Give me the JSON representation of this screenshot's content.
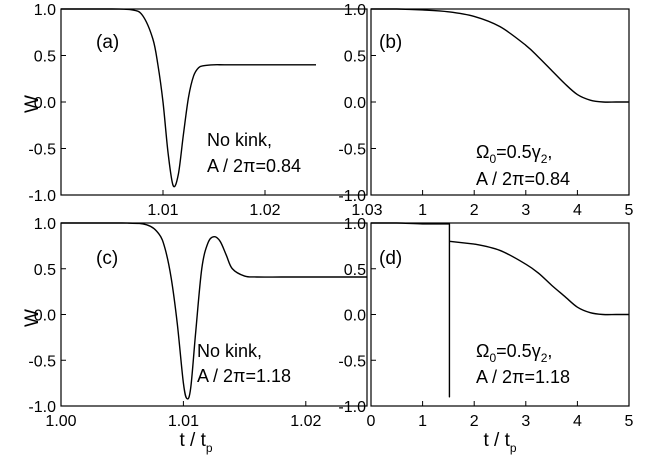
{
  "chart_data": [
    {
      "id": "a",
      "type": "line",
      "panel_label": "(a)",
      "ylabel": "W",
      "xlabel": "",
      "xlim": [
        1.0,
        1.03
      ],
      "ylim": [
        -1.0,
        1.0
      ],
      "xticks": [
        1.01,
        1.02,
        1.03
      ],
      "xtick_labels": [
        "1.01",
        "1.02",
        "1.03"
      ],
      "yticks": [
        1.0,
        0.5,
        0.0,
        -0.5,
        -1.0
      ],
      "ytick_labels": [
        "1.0",
        "0.5",
        "0.0",
        "-0.5",
        "-1.0"
      ],
      "annotation": [
        "No kink,",
        "A / 2π=0.84"
      ],
      "series": [
        {
          "x": [
            1.0,
            1.005,
            1.007,
            1.008,
            1.009,
            1.0095,
            1.01,
            1.0105,
            1.011,
            1.0115,
            1.012,
            1.0125,
            1.013,
            1.0135,
            1.014,
            1.015,
            1.016,
            1.018,
            1.02,
            1.025
          ],
          "y": [
            1.0,
            1.0,
            0.99,
            0.93,
            0.68,
            0.4,
            0.0,
            -0.55,
            -0.9,
            -0.78,
            -0.35,
            0.05,
            0.28,
            0.37,
            0.39,
            0.4,
            0.4,
            0.4,
            0.4,
            0.4
          ]
        }
      ]
    },
    {
      "id": "b",
      "type": "line",
      "panel_label": "(b)",
      "ylabel": "",
      "xlabel": "",
      "xlim": [
        0,
        5
      ],
      "ylim": [
        -1.0,
        1.0
      ],
      "xticks": [
        1,
        2,
        3,
        4,
        5
      ],
      "xtick_labels": [
        "1",
        "2",
        "3",
        "4",
        "5"
      ],
      "yticks": [
        1.0,
        0.5,
        0.0,
        -0.5,
        -1.0
      ],
      "ytick_labels": [
        "1.0",
        "0.5",
        "0.0",
        "-0.5",
        "-1.0"
      ],
      "annotation_omega": "Ω",
      "annotation_omega_sub": "0",
      "annotation_mid": "=0.5γ",
      "annotation_gamma_sub": "2",
      "annotation_end": ",",
      "annotation_line2": "A / 2π=0.84",
      "series": [
        {
          "x": [
            0,
            0.5,
            1.0,
            1.5,
            2.0,
            2.5,
            3.0,
            3.25,
            3.5,
            3.75,
            4.0,
            4.25,
            4.5,
            4.75,
            5.0
          ],
          "y": [
            1.0,
            1.0,
            0.99,
            0.97,
            0.92,
            0.81,
            0.61,
            0.48,
            0.34,
            0.2,
            0.08,
            0.02,
            0.0,
            0.0,
            0.0
          ]
        }
      ]
    },
    {
      "id": "c",
      "type": "line",
      "panel_label": "(c)",
      "ylabel": "W",
      "xlabel": "t / t",
      "xlabel_sub": "p",
      "xlim": [
        1.0,
        1.025
      ],
      "ylim": [
        -1.0,
        1.0
      ],
      "xticks": [
        1.0,
        1.01,
        1.02
      ],
      "xtick_labels": [
        "1.00",
        "1.01",
        "1.02"
      ],
      "yticks": [
        1.0,
        0.5,
        0.0,
        -0.5,
        -1.0
      ],
      "ytick_labels": [
        "1.0",
        "0.5",
        "0.0",
        "-0.5",
        "-1.0"
      ],
      "annotation": [
        "No kink,",
        "A / 2π=1.18"
      ],
      "series": [
        {
          "x": [
            1.0,
            1.005,
            1.007,
            1.008,
            1.0085,
            1.009,
            1.0095,
            1.01,
            1.0103,
            1.0106,
            1.011,
            1.0115,
            1.012,
            1.0125,
            1.013,
            1.0135,
            1.014,
            1.015,
            1.016,
            1.018,
            1.02,
            1.025
          ],
          "y": [
            1.0,
            1.0,
            0.98,
            0.88,
            0.72,
            0.4,
            -0.1,
            -0.75,
            -0.92,
            -0.8,
            -0.2,
            0.5,
            0.78,
            0.85,
            0.8,
            0.65,
            0.5,
            0.42,
            0.41,
            0.41,
            0.41,
            0.41
          ]
        }
      ]
    },
    {
      "id": "d",
      "type": "line",
      "panel_label": "(d)",
      "ylabel": "",
      "xlabel": "t / t",
      "xlabel_sub": "p",
      "xlim": [
        0,
        5
      ],
      "ylim": [
        -1.0,
        1.0
      ],
      "xticks": [
        0,
        1,
        2,
        3,
        4,
        5
      ],
      "xtick_labels": [
        "0",
        "1",
        "2",
        "3",
        "4",
        "5"
      ],
      "yticks": [
        1.0,
        0.5,
        0.0,
        -0.5,
        -1.0
      ],
      "ytick_labels": [
        "1.0",
        "0.5",
        "0.0",
        "-0.5",
        "-1.0"
      ],
      "annotation_omega": "Ω",
      "annotation_omega_sub": "0",
      "annotation_mid": "=0.5γ",
      "annotation_gamma_sub": "2",
      "annotation_end": ",",
      "annotation_line2": "A / 2π=1.18",
      "series": [
        {
          "x": [
            0,
            0.5,
            1.0,
            1.52,
            1.52,
            1.52,
            1.52,
            2.0,
            2.5,
            3.0,
            3.25,
            3.5,
            3.75,
            4.0,
            4.25,
            4.5,
            4.75,
            5.0
          ],
          "y": [
            1.0,
            1.0,
            0.99,
            0.99,
            -0.9,
            -0.9,
            0.8,
            0.77,
            0.7,
            0.55,
            0.45,
            0.32,
            0.2,
            0.08,
            0.02,
            0.0,
            0.0,
            0.0
          ]
        }
      ]
    }
  ]
}
